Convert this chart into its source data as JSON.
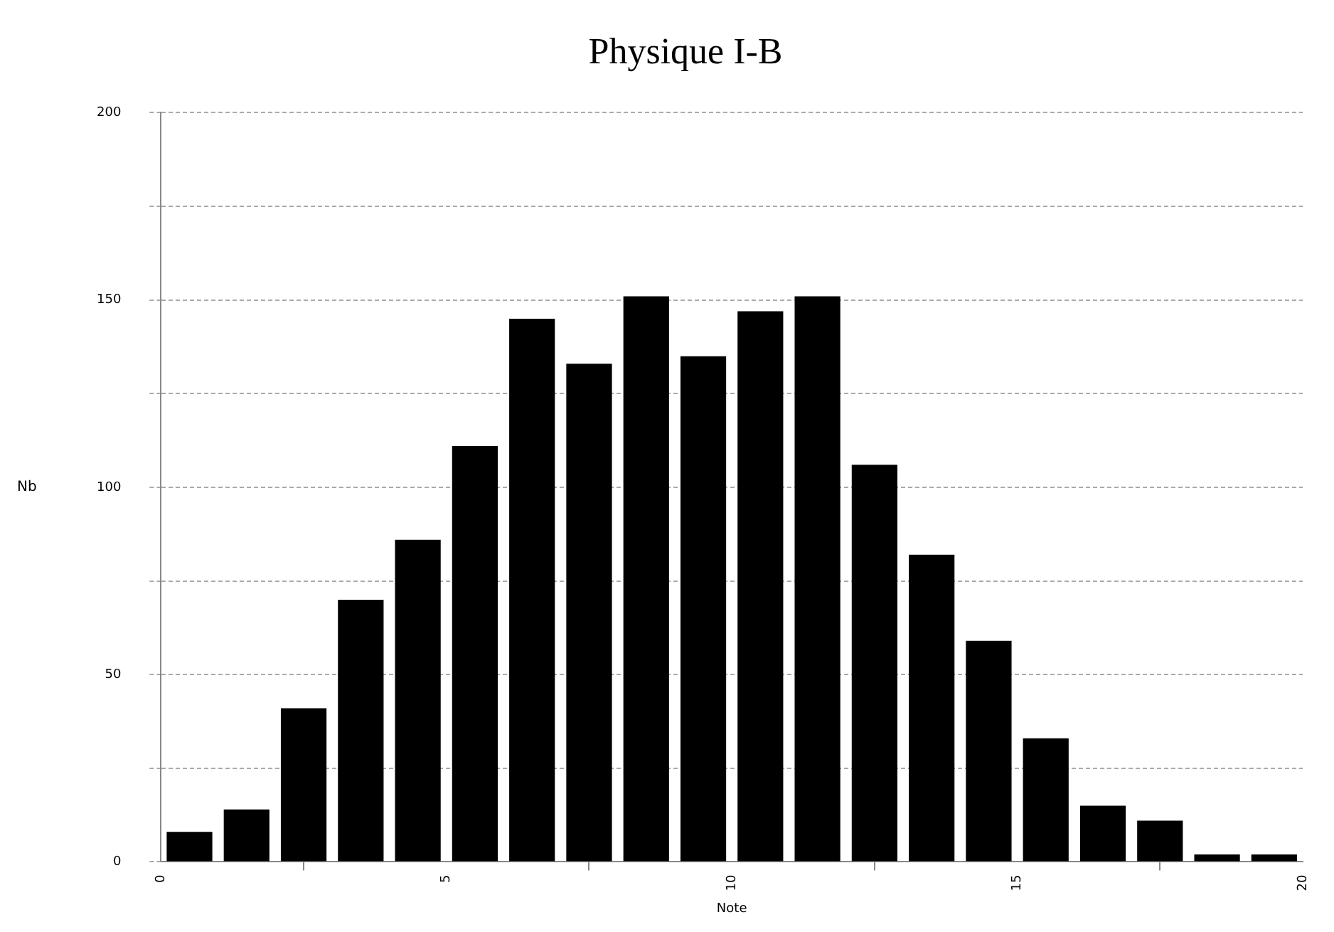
{
  "chart_data": {
    "type": "histogram",
    "title": "Physique I-B",
    "xlabel": "Note",
    "ylabel": "Nb",
    "bins": [
      0,
      1,
      2,
      3,
      4,
      5,
      6,
      7,
      8,
      9,
      10,
      11,
      12,
      13,
      14,
      15,
      16,
      17,
      18,
      19,
      20
    ],
    "values": [
      8,
      14,
      41,
      70,
      86,
      111,
      145,
      133,
      151,
      135,
      147,
      151,
      106,
      82,
      59,
      33,
      15,
      11,
      2,
      2
    ],
    "color": "#000000",
    "xlim": [
      0,
      20
    ],
    "xticks": [
      0,
      5,
      10,
      15,
      20
    ],
    "ylim": [
      0,
      200
    ],
    "yticks": [
      0,
      {
        "value": 25,
        "label": null
      },
      50,
      {
        "value": 75,
        "label": null
      },
      100,
      {
        "value": 125,
        "label": null
      },
      150,
      {
        "value": 175,
        "label": null
      },
      200
    ],
    "grid": "y",
    "legend": false
  }
}
